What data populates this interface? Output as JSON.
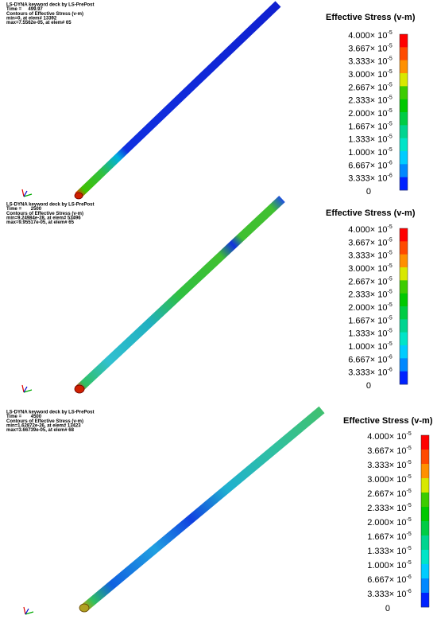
{
  "panels": [
    {
      "header": [
        "LS-DYNA keyword deck by LS-PrePost",
        "Time =     499.97",
        "Contours of Effective Stress (v-m)",
        "min=0, at elem# 13392",
        "max=7.5562e-05, at elem# 65"
      ],
      "legend": {
        "title": "Effective Stress (v-m)",
        "labels": [
          {
            "mantissa": "4.000× 10",
            "exponent": "-5"
          },
          {
            "mantissa": "3.667× 10",
            "exponent": "-5"
          },
          {
            "mantissa": "3.333× 10",
            "exponent": "-5"
          },
          {
            "mantissa": "3.000× 10",
            "exponent": "-5"
          },
          {
            "mantissa": "2.667× 10",
            "exponent": "-5"
          },
          {
            "mantissa": "2.333× 10",
            "exponent": "-5"
          },
          {
            "mantissa": "2.000× 10",
            "exponent": "-5"
          },
          {
            "mantissa": "1.667× 10",
            "exponent": "-5"
          },
          {
            "mantissa": "1.333× 10",
            "exponent": "-5"
          },
          {
            "mantissa": "1.000× 10",
            "exponent": "-5"
          },
          {
            "mantissa": "6.667× 10",
            "exponent": "-6"
          },
          {
            "mantissa": "3.333× 10",
            "exponent": "-6"
          },
          {
            "mantissa": "0"
          }
        ],
        "colors": [
          "#ff0000",
          "#ff4a00",
          "#ff9000",
          "#d8e800",
          "#3ccc00",
          "#00c800",
          "#00cc44",
          "#00d490",
          "#00e4c8",
          "#00ccff",
          "#0088ff",
          "#0022ff"
        ]
      }
    },
    {
      "header": [
        "LS-DYNA keyword deck by LS-PrePost",
        "Time =       2500",
        "Contours of Effective Stress (v-m)",
        "min=9.24984e-28, at elem# 53496",
        "max=9.95517e-05, at elem# 65"
      ],
      "legend": {
        "title": "Effective Stress (v-m)",
        "labels": [
          {
            "mantissa": "4.000× 10",
            "exponent": "-5"
          },
          {
            "mantissa": "3.667× 10",
            "exponent": "-5"
          },
          {
            "mantissa": "3.333× 10",
            "exponent": "-5"
          },
          {
            "mantissa": "3.000× 10",
            "exponent": "-5"
          },
          {
            "mantissa": "2.667× 10",
            "exponent": "-5"
          },
          {
            "mantissa": "2.333× 10",
            "exponent": "-5"
          },
          {
            "mantissa": "2.000× 10",
            "exponent": "-5"
          },
          {
            "mantissa": "1.667× 10",
            "exponent": "-5"
          },
          {
            "mantissa": "1.333× 10",
            "exponent": "-5"
          },
          {
            "mantissa": "1.000× 10",
            "exponent": "-5"
          },
          {
            "mantissa": "6.667× 10",
            "exponent": "-6"
          },
          {
            "mantissa": "3.333× 10",
            "exponent": "-6"
          },
          {
            "mantissa": "0"
          }
        ],
        "colors": [
          "#ff0000",
          "#ff4a00",
          "#ff9000",
          "#d8e800",
          "#3ccc00",
          "#00c800",
          "#00cc44",
          "#00d490",
          "#00e4c8",
          "#00ccff",
          "#0088ff",
          "#0022ff"
        ]
      }
    },
    {
      "header": [
        "LS-DYNA keyword deck by LS-PrePost",
        "Time =       4500",
        "Contours of Effective Stress (v-m)",
        "min=1.62872e-26, at elem# 13423",
        "max=3.66739e-05, at elem# 68"
      ],
      "legend": {
        "title": "Effective Stress (v-m)",
        "labels": [
          {
            "mantissa": "4.000× 10",
            "exponent": "-5"
          },
          {
            "mantissa": "3.667× 10",
            "exponent": "-5"
          },
          {
            "mantissa": "3.333× 10",
            "exponent": "-5"
          },
          {
            "mantissa": "3.000× 10",
            "exponent": "-5"
          },
          {
            "mantissa": "2.667× 10",
            "exponent": "-5"
          },
          {
            "mantissa": "2.333× 10",
            "exponent": "-5"
          },
          {
            "mantissa": "2.000× 10",
            "exponent": "-5"
          },
          {
            "mantissa": "1.667× 10",
            "exponent": "-5"
          },
          {
            "mantissa": "1.333× 10",
            "exponent": "-5"
          },
          {
            "mantissa": "1.000× 10",
            "exponent": "-5"
          },
          {
            "mantissa": "6.667× 10",
            "exponent": "-6"
          },
          {
            "mantissa": "3.333× 10",
            "exponent": "-6"
          },
          {
            "mantissa": "0"
          }
        ],
        "colors": [
          "#ff0000",
          "#ff4a00",
          "#ff9000",
          "#d8e800",
          "#3ccc00",
          "#00c800",
          "#00cc44",
          "#00d490",
          "#00e4c8",
          "#00ccff",
          "#0088ff",
          "#0022ff"
        ]
      }
    }
  ]
}
